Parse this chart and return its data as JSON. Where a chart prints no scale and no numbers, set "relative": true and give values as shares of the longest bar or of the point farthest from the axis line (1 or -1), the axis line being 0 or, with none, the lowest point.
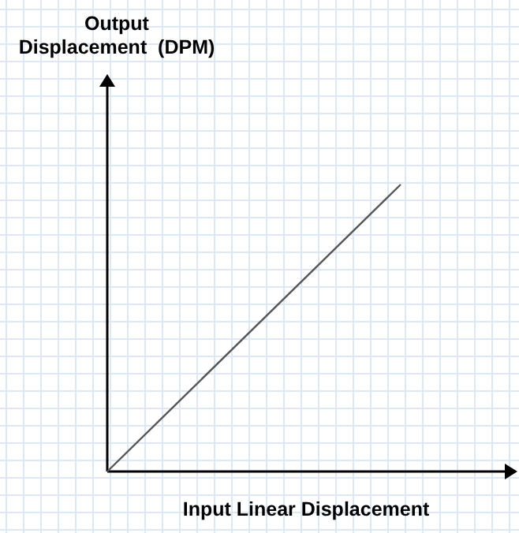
{
  "chart_data": {
    "type": "line",
    "relative": true,
    "annotations": [
      "Output Displacement  (DPM)"
    ],
    "xlabel": "Input Linear Displacement",
    "categories": [
      null,
      null
    ],
    "series": [
      {
        "color": "#555555",
        "values": [
          0,
          1
        ]
      }
    ],
    "grid": true,
    "marker": "none",
    "line_style": "solid"
  }
}
